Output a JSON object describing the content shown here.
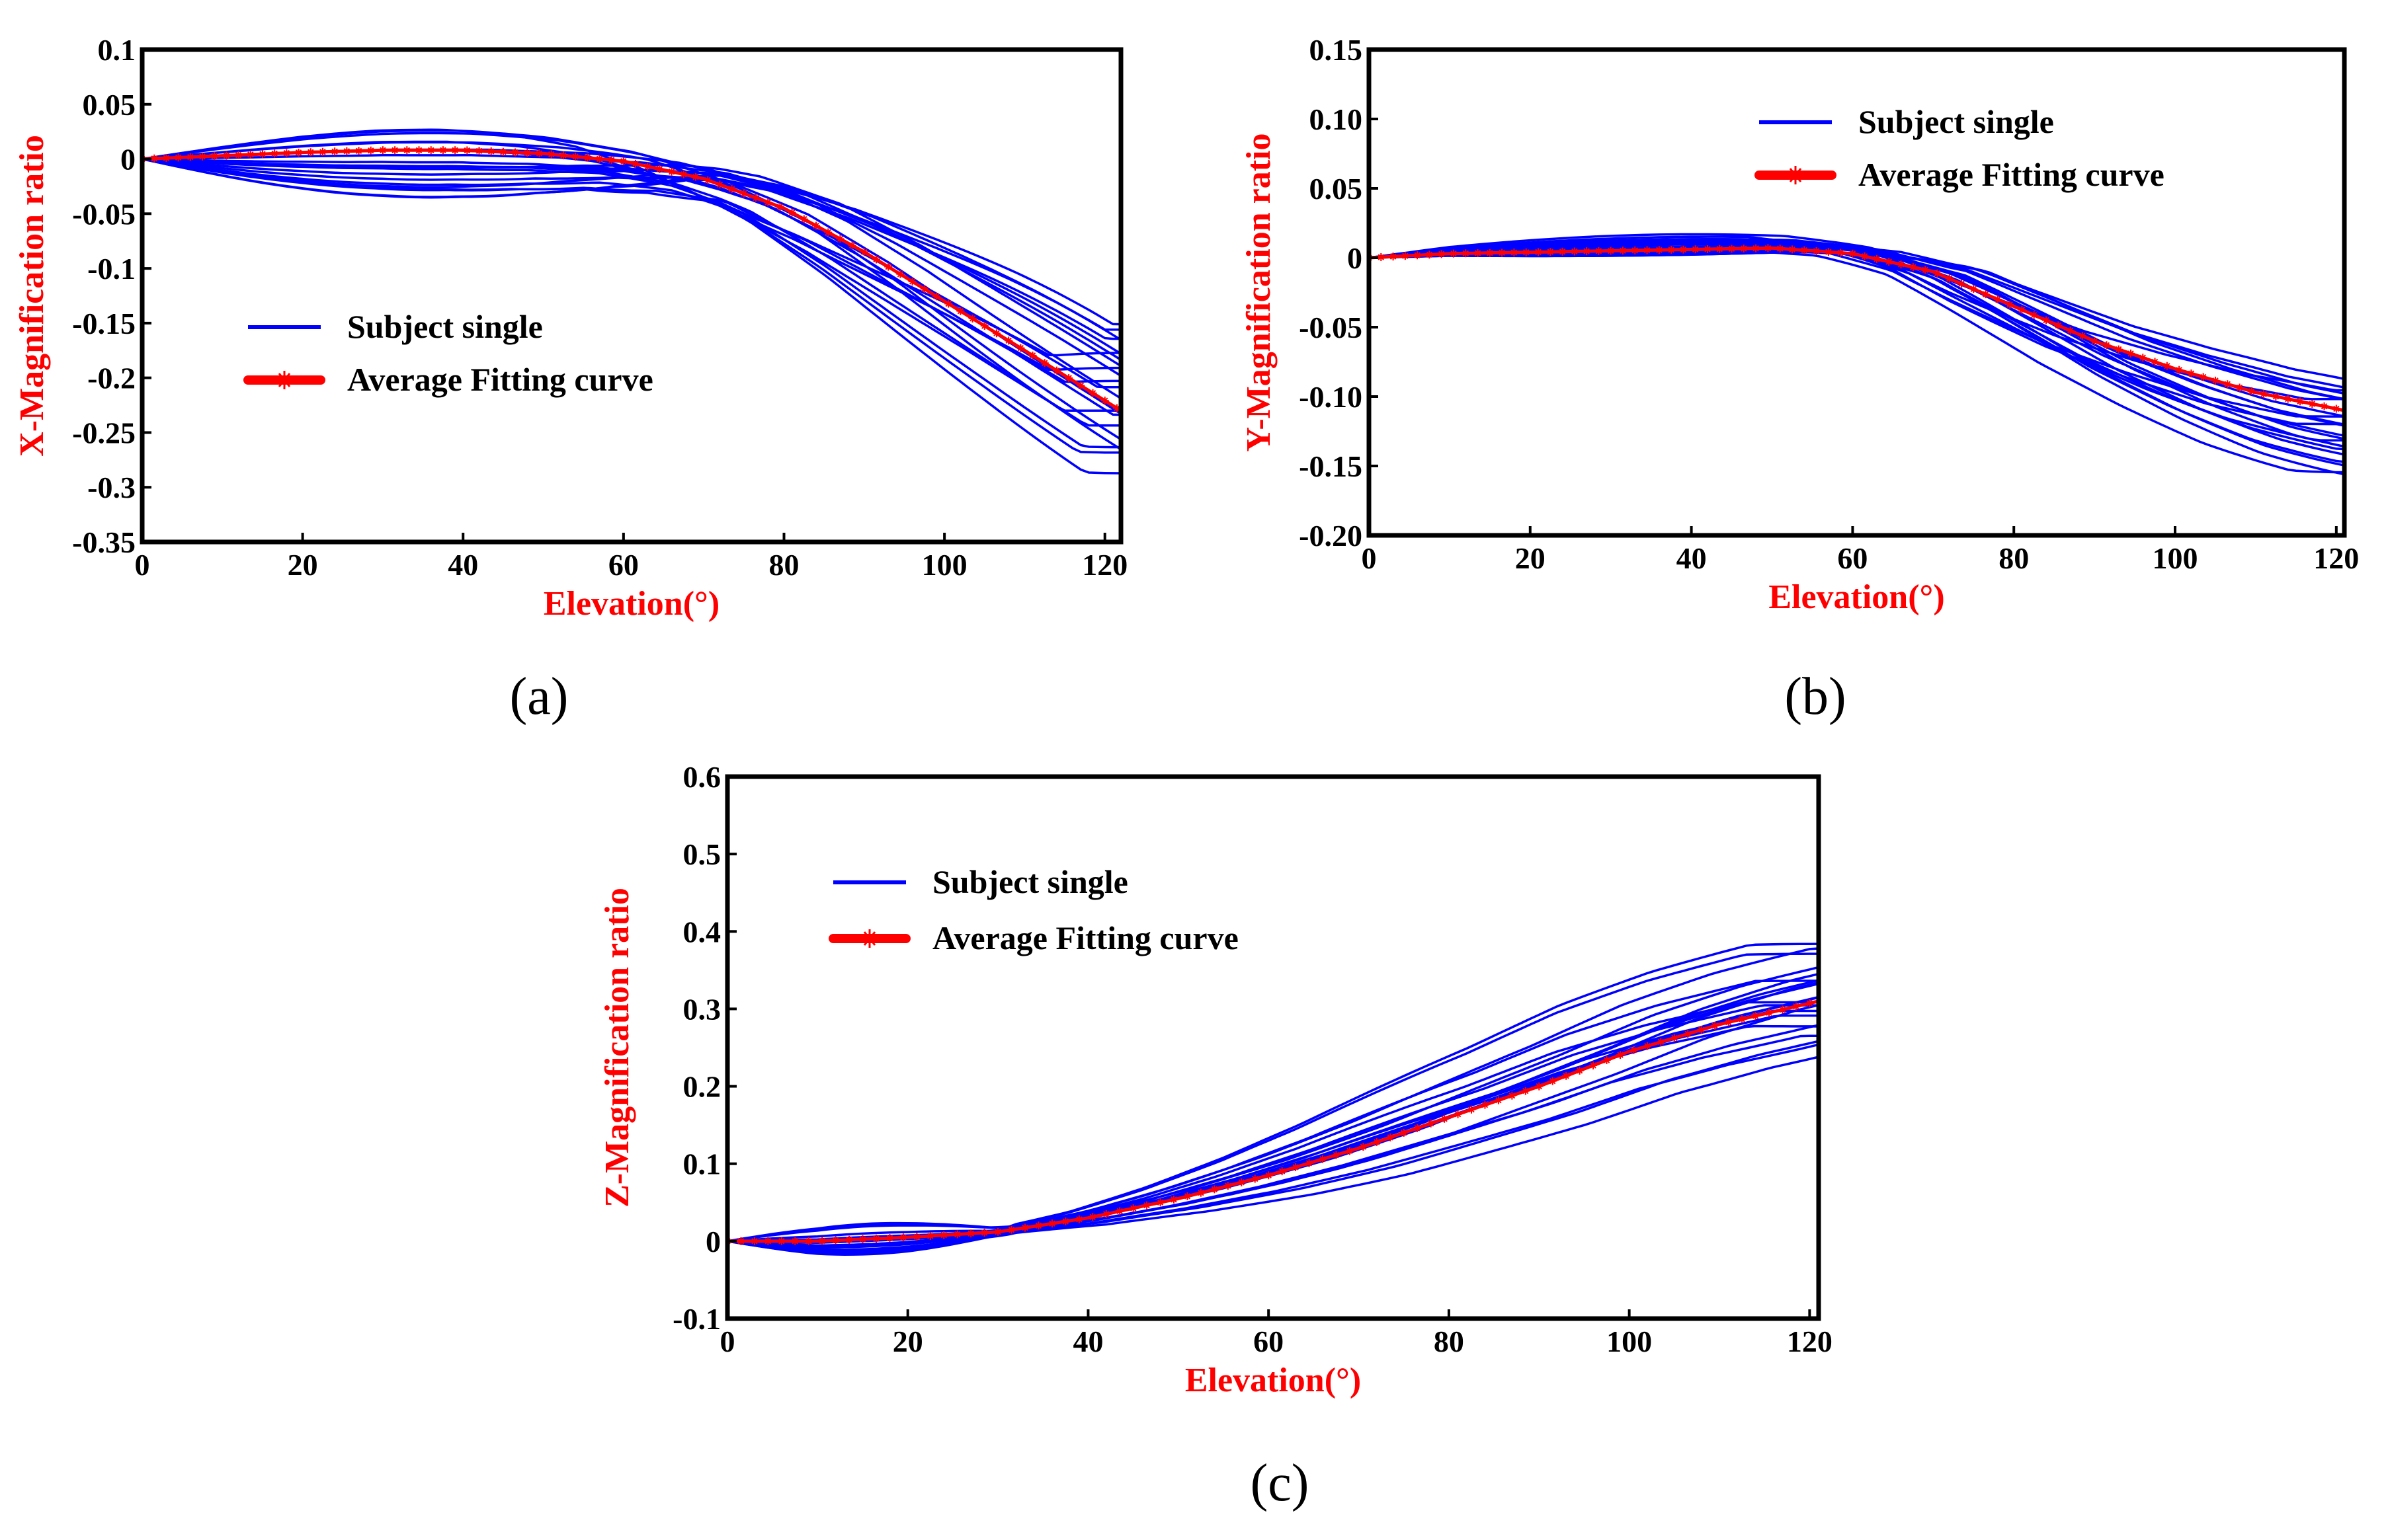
{
  "figure": {
    "panels": [
      "(a)",
      "(b)",
      "(c)"
    ]
  },
  "colors": {
    "subject": "#0000ff",
    "average": "#ff0000",
    "axis_title": "#ff0000",
    "frame": "#000000"
  },
  "chart_data": [
    {
      "id": "a",
      "type": "line",
      "panel_label": "(a)",
      "xlabel": "Elevation(°)",
      "ylabel": "X-Magnification ratio",
      "xlim": [
        0,
        122
      ],
      "ylim": [
        -0.35,
        0.1
      ],
      "xticks": [
        0,
        20,
        40,
        60,
        80,
        100,
        120
      ],
      "yticks": [
        0.1,
        0.05,
        0,
        -0.05,
        -0.1,
        -0.15,
        -0.2,
        -0.25,
        -0.3,
        -0.35
      ],
      "ytick_labels": [
        "0.1",
        "0.05",
        "0",
        "-0.05",
        "-0.1",
        "-0.15",
        "-0.2",
        "-0.25",
        "-0.3",
        "-0.35"
      ],
      "legend": {
        "subject": "Subject single",
        "average": "Average Fitting curve"
      },
      "subject_count": 22,
      "average_x": [
        0,
        10,
        20,
        30,
        40,
        50,
        60,
        70,
        80,
        90,
        100,
        110,
        122
      ],
      "average_y": [
        0,
        0.003,
        0.006,
        0.008,
        0.008,
        0.005,
        -0.002,
        -0.018,
        -0.045,
        -0.085,
        -0.13,
        -0.175,
        -0.23
      ],
      "end_min": -0.29,
      "end_max": -0.145,
      "x_split": 62,
      "early_min": -0.045,
      "early_max": 0.02
    },
    {
      "id": "b",
      "type": "line",
      "panel_label": "(b)",
      "xlabel": "Elevation(°)",
      "ylabel": "Y-Magnification ratio",
      "xlim": [
        0,
        121
      ],
      "ylim": [
        -0.2,
        0.15
      ],
      "xticks": [
        0,
        20,
        40,
        60,
        80,
        100,
        120
      ],
      "yticks": [
        0.15,
        0.1,
        0.05,
        0,
        -0.05,
        -0.1,
        -0.15,
        -0.2
      ],
      "ytick_labels": [
        "0.15",
        "0.10",
        "0.05",
        "0",
        "-0.05",
        "-0.10",
        "-0.15",
        "-0.20"
      ],
      "legend": {
        "subject": "Subject single",
        "average": "Average Fitting curve"
      },
      "subject_count": 22,
      "average_x": [
        0,
        10,
        20,
        30,
        40,
        50,
        60,
        70,
        80,
        90,
        100,
        110,
        121
      ],
      "average_y": [
        0,
        0.003,
        0.004,
        0.005,
        0.006,
        0.007,
        0.003,
        -0.01,
        -0.035,
        -0.06,
        -0.08,
        -0.097,
        -0.11
      ],
      "end_min": -0.158,
      "end_max": -0.09,
      "x_split": 62,
      "early_min": -0.004,
      "early_max": 0.012
    },
    {
      "id": "c",
      "type": "line",
      "panel_label": "(c)",
      "xlabel": "Elevation(°)",
      "ylabel": "Z-Magnification ratio",
      "xlim": [
        0,
        121
      ],
      "ylim": [
        -0.1,
        0.6
      ],
      "xticks": [
        0,
        20,
        40,
        60,
        80,
        100,
        120
      ],
      "yticks": [
        0.6,
        0.5,
        0.4,
        0.3,
        0.2,
        0.1,
        0,
        -0.1
      ],
      "ytick_labels": [
        "0.6",
        "0.5",
        "0.4",
        "0.3",
        "0.2",
        "0.1",
        "0",
        "-0.1"
      ],
      "legend": {
        "subject": "Subject single",
        "average": "Average Fitting curve"
      },
      "subject_count": 22,
      "average_x": [
        0,
        10,
        20,
        30,
        40,
        50,
        60,
        70,
        80,
        90,
        100,
        110,
        121
      ],
      "average_y": [
        0,
        0.0,
        0.005,
        0.012,
        0.03,
        0.055,
        0.085,
        0.12,
        0.16,
        0.2,
        0.245,
        0.28,
        0.31
      ],
      "end_min": 0.25,
      "end_max": 0.39,
      "x_split": 22,
      "early_min": -0.02,
      "early_max": 0.02
    }
  ]
}
